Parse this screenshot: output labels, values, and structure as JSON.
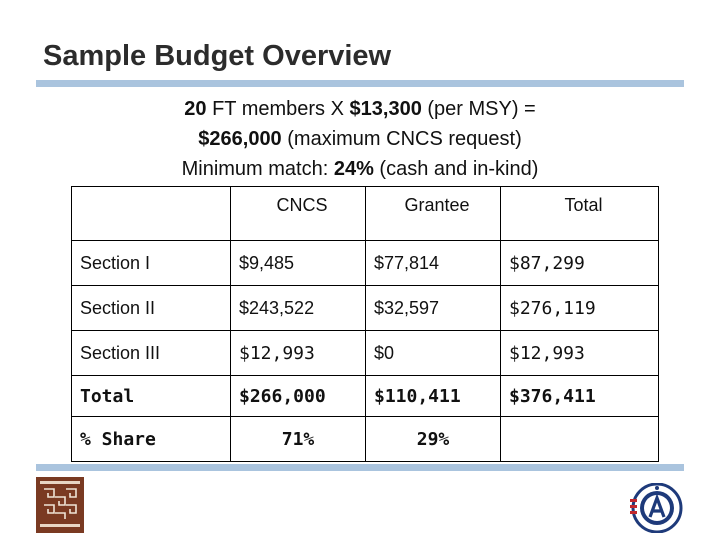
{
  "title": "Sample Budget Overview",
  "intro": {
    "line1_a": "20",
    "line1_b": " FT members X ",
    "line1_c": "$13,300",
    "line1_d": " (per MSY) =",
    "line2_a": "$266,000",
    "line2_b": " (maximum CNCS request)",
    "line3_a": "Minimum match: ",
    "line3_b": "24%",
    "line3_c": " (cash and in-kind)"
  },
  "table": {
    "headers": [
      "",
      "CNCS",
      "Grantee",
      "Total"
    ],
    "rows": [
      [
        "Section I",
        "$9,485",
        "$77,814",
        "$87,299"
      ],
      [
        "Section II",
        "$243,522",
        "$32,597",
        "$276,119"
      ],
      [
        "Section III",
        "$12,993",
        "$0",
        "$12,993"
      ]
    ],
    "total": [
      "Total",
      "$266,000",
      "$110,411",
      "$376,411"
    ],
    "share": [
      "% Share",
      "71%",
      "29%",
      ""
    ]
  },
  "logos": {
    "left_icon": "massachusetts-logo",
    "right_icon": "americorps-logo"
  },
  "colors": {
    "rule": "#aac4de",
    "left_logo": "#7a3a22",
    "americorps_blue": "#1e3a7a",
    "americorps_red": "#c0282d"
  }
}
